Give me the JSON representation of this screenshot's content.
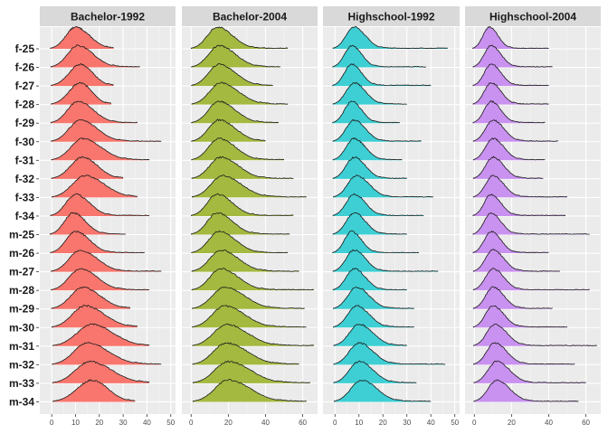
{
  "chart_data": {
    "type": "ridgeline",
    "facets": [
      "Bachelor-1992",
      "Bachelor-2004",
      "Highschool-1992",
      "Highschool-2004"
    ],
    "groups": [
      "f-25",
      "f-26",
      "f-27",
      "f-28",
      "f-29",
      "f-30",
      "f-31",
      "f-32",
      "f-33",
      "f-34",
      "m-25",
      "m-26",
      "m-27",
      "m-28",
      "m-29",
      "m-30",
      "m-31",
      "m-32",
      "m-33",
      "m-34"
    ],
    "colors": [
      "#f8766d",
      "#a3b940",
      "#3ecfd4",
      "#c991f0"
    ],
    "x_ticks": [
      [
        0,
        10,
        20,
        30,
        40,
        50
      ],
      [
        0,
        20,
        40,
        60
      ],
      [
        0,
        10,
        20,
        30,
        40,
        50
      ],
      [
        0,
        20,
        40,
        60
      ]
    ],
    "xlim": [
      [
        -5,
        52
      ],
      [
        -5,
        68
      ],
      [
        -5,
        52
      ],
      [
        -5,
        68
      ]
    ],
    "peak_x": [
      [
        10,
        11,
        12,
        12,
        11,
        12,
        13,
        13,
        14,
        10,
        9,
        10,
        12,
        12,
        13,
        14,
        17,
        15,
        16,
        17
      ],
      [
        14,
        15,
        15,
        16,
        15,
        15,
        15,
        16,
        17,
        14,
        14,
        15,
        16,
        16,
        18,
        18,
        19,
        19,
        20,
        20
      ],
      [
        8,
        7,
        7,
        8,
        7,
        8,
        8,
        8,
        9,
        8,
        8,
        7,
        8,
        8,
        9,
        9,
        10,
        10,
        10,
        11
      ],
      [
        8,
        9,
        9,
        9,
        9,
        10,
        10,
        10,
        10,
        9,
        9,
        9,
        10,
        10,
        10,
        10,
        11,
        11,
        12,
        12
      ]
    ],
    "x_max": [
      [
        26,
        37,
        26,
        25,
        36,
        46,
        41,
        30,
        36,
        41,
        31,
        39,
        46,
        41,
        33,
        36,
        41,
        46,
        41,
        35
      ],
      [
        52,
        48,
        44,
        52,
        47,
        40,
        50,
        55,
        62,
        55,
        53,
        52,
        58,
        66,
        61,
        62,
        66,
        58,
        64,
        62
      ],
      [
        47,
        38,
        40,
        30,
        27,
        36,
        28,
        30,
        41,
        37,
        30,
        35,
        43,
        30,
        33,
        33,
        30,
        46,
        34,
        40
      ],
      [
        40,
        42,
        40,
        40,
        38,
        45,
        38,
        37,
        50,
        49,
        62,
        40,
        46,
        62,
        42,
        50,
        66,
        54,
        60,
        56
      ]
    ]
  }
}
